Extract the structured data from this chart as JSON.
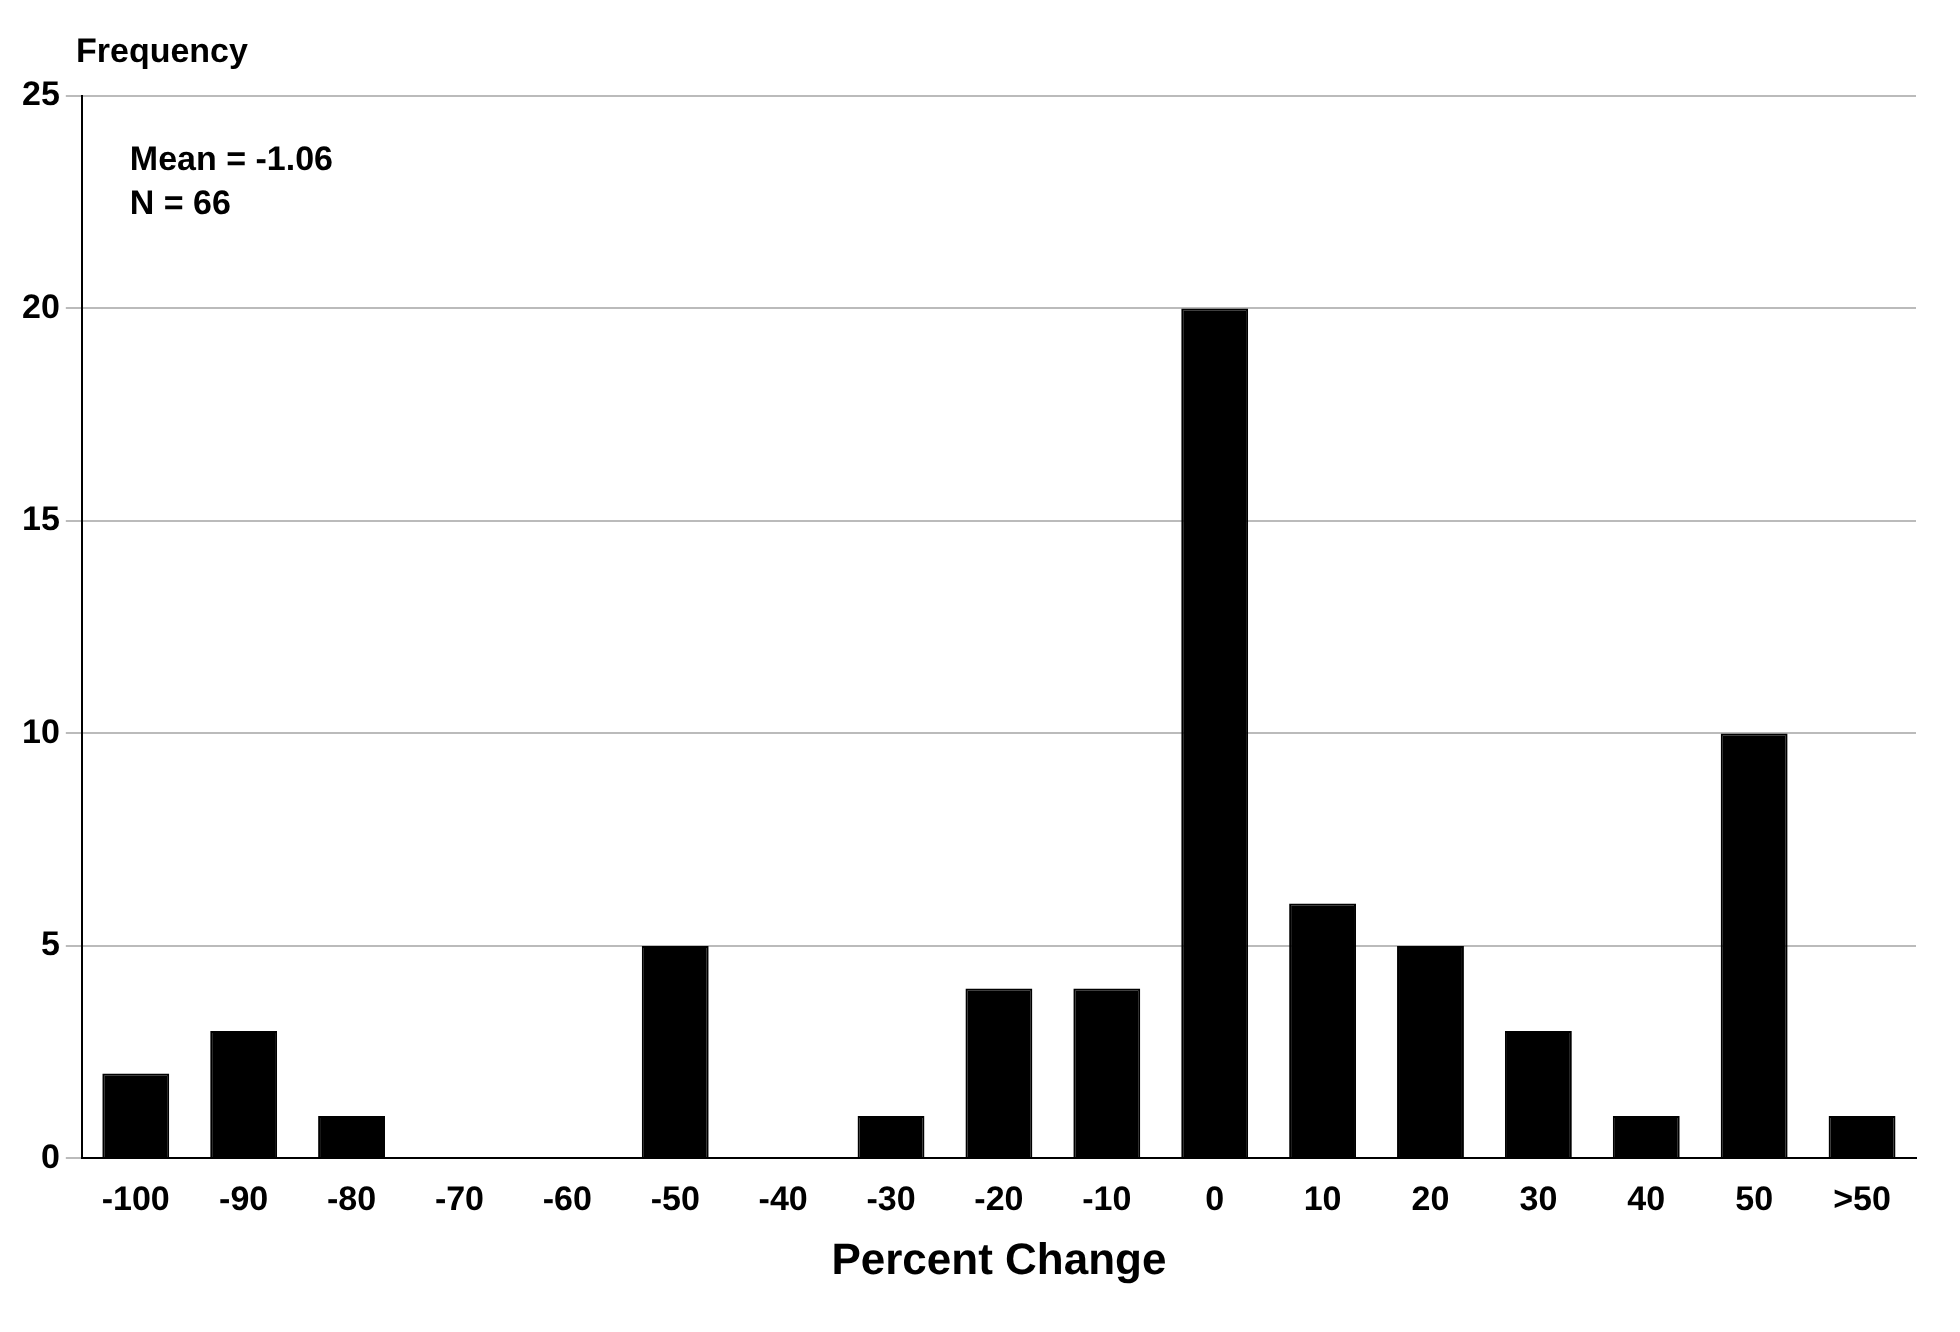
{
  "chart_data": {
    "type": "bar",
    "ylabel": "Frequency",
    "xlabel": "Percent Change",
    "categories": [
      "-100",
      "-90",
      "-80",
      "-70",
      "-60",
      "-50",
      "-40",
      "-30",
      "-20",
      "-10",
      "0",
      "10",
      "20",
      "30",
      "40",
      "50",
      ">50"
    ],
    "values": [
      2,
      3,
      1,
      0,
      0,
      5,
      0,
      1,
      4,
      4,
      20,
      6,
      5,
      3,
      1,
      10,
      1
    ],
    "color": "#000000",
    "ylim": [
      0,
      25
    ],
    "yticks": [
      0,
      5,
      10,
      15,
      20,
      25
    ],
    "grid": "y",
    "annotations": [
      "Mean = -1.06",
      "N = 66"
    ]
  }
}
